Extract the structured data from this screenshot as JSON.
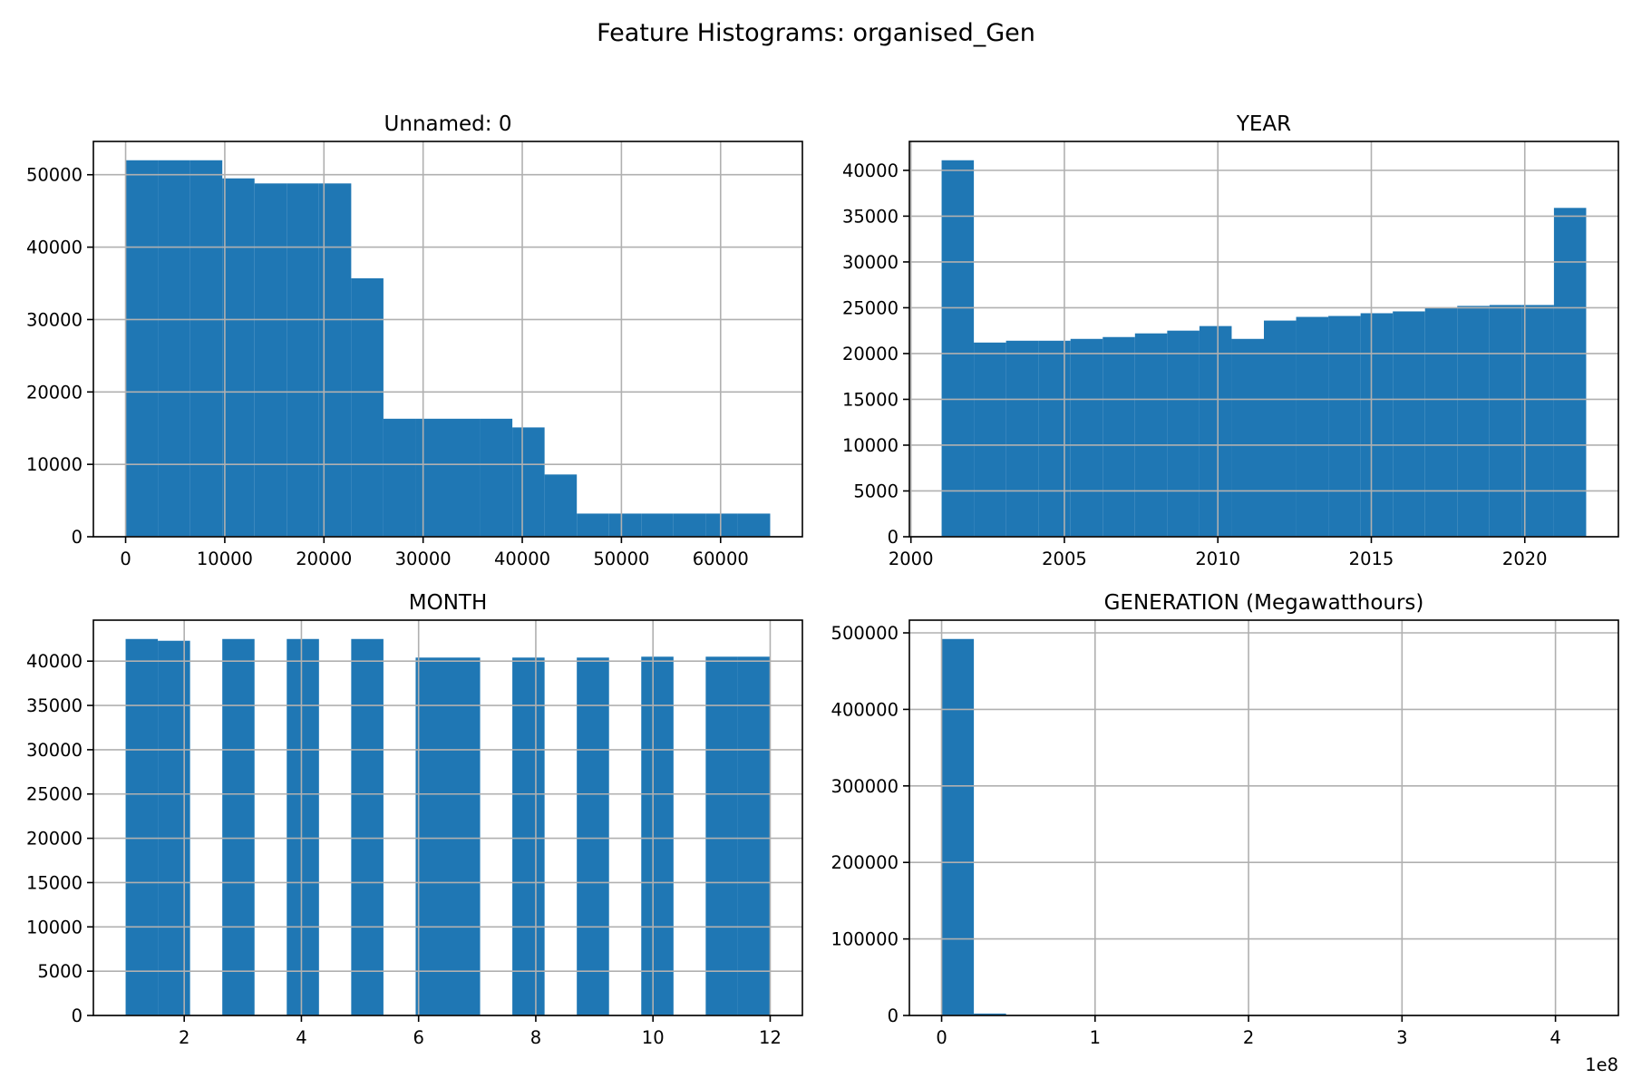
{
  "figure": {
    "title": "Feature Histograms: organised_Gen"
  },
  "chart_data": [
    {
      "type": "bar",
      "title": "Unnamed: 0",
      "xlabel": "",
      "ylabel": "",
      "bin_edges": [
        0,
        3250,
        6500,
        9750,
        13000,
        16250,
        19500,
        22750,
        26000,
        29250,
        32500,
        35750,
        39000,
        42250,
        45500,
        48750,
        52000,
        55250,
        58500,
        61750,
        65000
      ],
      "values": [
        52000,
        52000,
        52000,
        49500,
        48800,
        48800,
        48800,
        35700,
        16300,
        16300,
        16300,
        16300,
        15100,
        8600,
        3200,
        3200,
        3200,
        3200,
        3200,
        3200
      ],
      "xlim": [
        -3250,
        68250
      ],
      "ylim": [
        0,
        54600
      ],
      "xticks": [
        0,
        10000,
        20000,
        30000,
        40000,
        50000,
        60000
      ],
      "xtick_labels": [
        "0",
        "10000",
        "20000",
        "30000",
        "40000",
        "50000",
        "60000"
      ],
      "yticks": [
        0,
        10000,
        20000,
        30000,
        40000,
        50000
      ],
      "ytick_labels": [
        "0",
        "10000",
        "20000",
        "30000",
        "40000",
        "50000"
      ],
      "grid": true,
      "color": "#1f77b4"
    },
    {
      "type": "bar",
      "title": "YEAR",
      "xlabel": "",
      "ylabel": "",
      "bin_edges": [
        2001,
        2002.05,
        2003.1,
        2004.15,
        2005.2,
        2006.25,
        2007.3,
        2008.35,
        2009.4,
        2010.45,
        2011.5,
        2012.55,
        2013.6,
        2014.65,
        2015.7,
        2016.75,
        2017.8,
        2018.85,
        2019.9,
        2020.95,
        2022
      ],
      "values": [
        41100,
        21200,
        21400,
        21400,
        21600,
        21800,
        22200,
        22500,
        23000,
        21600,
        23600,
        24000,
        24100,
        24400,
        24600,
        25000,
        25200,
        25300,
        25300,
        35900
      ],
      "xlim": [
        1999.95,
        2023.05
      ],
      "ylim": [
        0,
        43155
      ],
      "xticks": [
        2000,
        2005,
        2010,
        2015,
        2020
      ],
      "xtick_labels": [
        "2000",
        "2005",
        "2010",
        "2015",
        "2020"
      ],
      "yticks": [
        0,
        5000,
        10000,
        15000,
        20000,
        25000,
        30000,
        35000,
        40000
      ],
      "ytick_labels": [
        "0",
        "5000",
        "10000",
        "15000",
        "20000",
        "25000",
        "30000",
        "35000",
        "40000"
      ],
      "grid": true,
      "color": "#1f77b4"
    },
    {
      "type": "bar",
      "title": "MONTH",
      "xlabel": "",
      "ylabel": "",
      "bin_edges": [
        1,
        1.55,
        2.1,
        2.65,
        3.2,
        3.75,
        4.3,
        4.85,
        5.4,
        5.95,
        6.5,
        7.05,
        7.6,
        8.15,
        8.7,
        9.25,
        9.8,
        10.35,
        10.9,
        11.45,
        12
      ],
      "values": [
        42500,
        42300,
        0,
        42500,
        0,
        42500,
        0,
        42500,
        0,
        40400,
        40400,
        0,
        40400,
        0,
        40400,
        0,
        40500,
        0,
        40500,
        40500
      ],
      "xlim": [
        0.45,
        12.55
      ],
      "ylim": [
        0,
        44625
      ],
      "xticks": [
        2,
        4,
        6,
        8,
        10,
        12
      ],
      "xtick_labels": [
        "2",
        "4",
        "6",
        "8",
        "10",
        "12"
      ],
      "yticks": [
        0,
        5000,
        10000,
        15000,
        20000,
        25000,
        30000,
        35000,
        40000
      ],
      "ytick_labels": [
        "0",
        "5000",
        "10000",
        "15000",
        "20000",
        "25000",
        "30000",
        "35000",
        "40000"
      ],
      "grid": true,
      "color": "#1f77b4"
    },
    {
      "type": "bar",
      "title": "GENERATION (Megawatthours)",
      "xlabel": "",
      "ylabel": "",
      "bin_edges": [
        0,
        21000000,
        42000000,
        63000000,
        84000000,
        105000000,
        126000000,
        147000000,
        168000000,
        189000000,
        210000000,
        231000000,
        252000000,
        273000000,
        294000000,
        315000000,
        336000000,
        357000000,
        378000000,
        399000000,
        420000000
      ],
      "values": [
        492000,
        2500,
        600,
        250,
        120,
        60,
        30,
        15,
        10,
        5,
        5,
        3,
        2,
        1,
        1,
        1,
        1,
        1,
        1,
        1
      ],
      "xlim": [
        -21000000,
        441000000
      ],
      "ylim": [
        0,
        516600
      ],
      "xticks": [
        0,
        100000000,
        200000000,
        300000000,
        400000000
      ],
      "xtick_labels": [
        "0",
        "1",
        "2",
        "3",
        "4"
      ],
      "x_offset_label": "1e8",
      "yticks": [
        0,
        100000,
        200000,
        300000,
        400000,
        500000
      ],
      "ytick_labels": [
        "0",
        "100000",
        "200000",
        "300000",
        "400000",
        "500000"
      ],
      "grid": true,
      "color": "#1f77b4"
    }
  ]
}
